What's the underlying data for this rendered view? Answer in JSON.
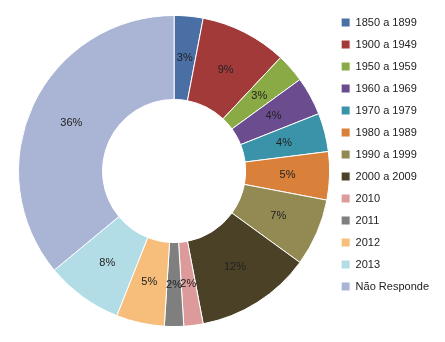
{
  "chart_data": {
    "type": "doughnut",
    "categories": [
      "1850 a 1899",
      "1900 a 1949",
      "1950 a 1959",
      "1960 a 1969",
      "1970 a 1979",
      "1980 a 1989",
      "1990 a 1999",
      "2000 a 2009",
      "2010",
      "2011",
      "2012",
      "2013",
      "Não Responde"
    ],
    "values": [
      3,
      9,
      3,
      4,
      4,
      5,
      7,
      12,
      2,
      2,
      5,
      8,
      36
    ],
    "value_labels": [
      "3%",
      "9%",
      "3%",
      "4%",
      "4%",
      "5%",
      "7%",
      "12%",
      "2%",
      "2%",
      "5%",
      "8%",
      "36%"
    ],
    "colors": [
      "#4a6fa5",
      "#a33a3a",
      "#8aaa45",
      "#6b4d8f",
      "#3a93a8",
      "#d9803a",
      "#938953",
      "#4a4127",
      "#dd9a9a",
      "#7f7f7f",
      "#f6be7a",
      "#b3dde6",
      "#aab5d5"
    ],
    "data_labels": true,
    "legend": "right"
  }
}
